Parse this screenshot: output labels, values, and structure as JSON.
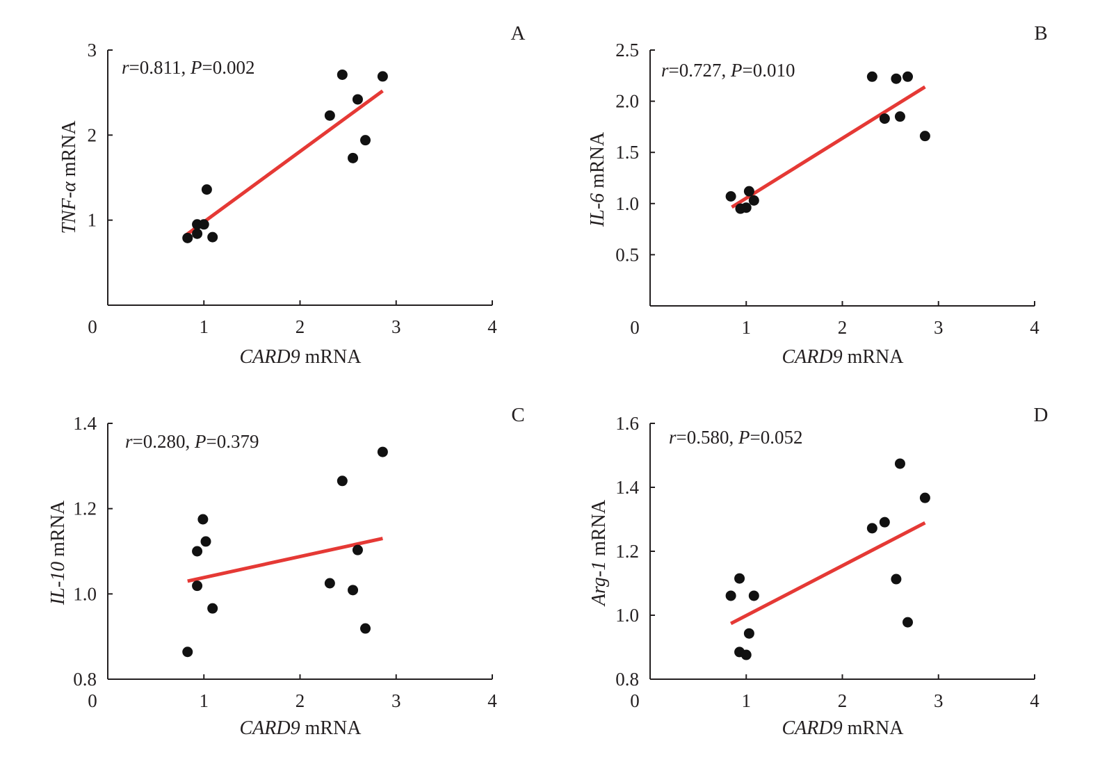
{
  "figure": {
    "line_color": "#E53935",
    "point_color": "#111111"
  },
  "chart_data": [
    {
      "type": "scatter",
      "panel": "A",
      "title": "",
      "xlabel_italic": "CARD9",
      "xlabel_rest": " mRNA",
      "ylabel_italic": "TNF-α",
      "ylabel_rest": " mRNA",
      "stat": {
        "r_label": "r",
        "r_value": "=0.811, ",
        "p_label": "P",
        "p_value": "=0.002"
      },
      "xlim": [
        0,
        4
      ],
      "ylim": [
        0,
        3
      ],
      "xticks": [
        "0",
        "1",
        "2",
        "3",
        "4"
      ],
      "yticks": [
        "1",
        "2",
        "3"
      ],
      "ytick_values": [
        1,
        2,
        3
      ],
      "grid": false,
      "points": [
        {
          "x": 0.83,
          "y": 0.79
        },
        {
          "x": 0.93,
          "y": 0.84
        },
        {
          "x": 0.93,
          "y": 0.95
        },
        {
          "x": 1.0,
          "y": 0.95
        },
        {
          "x": 1.03,
          "y": 1.36
        },
        {
          "x": 1.09,
          "y": 0.8
        },
        {
          "x": 2.31,
          "y": 2.23
        },
        {
          "x": 2.44,
          "y": 2.71
        },
        {
          "x": 2.55,
          "y": 1.73
        },
        {
          "x": 2.6,
          "y": 2.42
        },
        {
          "x": 2.68,
          "y": 1.94
        },
        {
          "x": 2.86,
          "y": 2.69
        }
      ],
      "fit": {
        "x": [
          0.82,
          2.86
        ],
        "y": [
          0.83,
          2.52
        ]
      }
    },
    {
      "type": "scatter",
      "panel": "B",
      "title": "",
      "xlabel_italic": "CARD9",
      "xlabel_rest": " mRNA",
      "ylabel_italic": "IL-6",
      "ylabel_rest": " mRNA",
      "stat": {
        "r_label": "r",
        "r_value": "=0.727, ",
        "p_label": "P",
        "p_value": "=0.010"
      },
      "xlim": [
        0,
        4
      ],
      "ylim": [
        0,
        2.5
      ],
      "xticks": [
        "0",
        "1",
        "2",
        "3",
        "4"
      ],
      "yticks": [
        "0.5",
        "1.0",
        "1.5",
        "2.0",
        "2.5"
      ],
      "ytick_values": [
        0.5,
        1.0,
        1.5,
        2.0,
        2.5
      ],
      "grid": false,
      "points": [
        {
          "x": 0.84,
          "y": 1.07
        },
        {
          "x": 0.94,
          "y": 0.95
        },
        {
          "x": 1.0,
          "y": 0.96
        },
        {
          "x": 1.03,
          "y": 1.12
        },
        {
          "x": 1.08,
          "y": 1.03
        },
        {
          "x": 2.31,
          "y": 2.24
        },
        {
          "x": 2.44,
          "y": 1.83
        },
        {
          "x": 2.56,
          "y": 2.22
        },
        {
          "x": 2.6,
          "y": 1.85
        },
        {
          "x": 2.68,
          "y": 2.24
        },
        {
          "x": 2.86,
          "y": 1.66
        }
      ],
      "fit": {
        "x": [
          0.85,
          2.86
        ],
        "y": [
          0.965,
          2.14
        ]
      }
    },
    {
      "type": "scatter",
      "panel": "C",
      "title": "",
      "xlabel_italic": "CARD9",
      "xlabel_rest": " mRNA",
      "ylabel_italic": "IL-10",
      "ylabel_rest": " mRNA",
      "stat": {
        "r_label": "r",
        "r_value": "=0.280, ",
        "p_label": "P",
        "p_value": "=0.379"
      },
      "xlim": [
        0,
        4
      ],
      "ylim": [
        0.8,
        1.4
      ],
      "xticks": [
        "0",
        "1",
        "2",
        "3",
        "4"
      ],
      "yticks": [
        "0.8",
        "1.0",
        "1.2",
        "1.4"
      ],
      "ytick_values": [
        0.8,
        1.0,
        1.2,
        1.4
      ],
      "grid": false,
      "points": [
        {
          "x": 0.83,
          "y": 0.864
        },
        {
          "x": 0.93,
          "y": 1.019
        },
        {
          "x": 0.93,
          "y": 1.1
        },
        {
          "x": 0.99,
          "y": 1.175
        },
        {
          "x": 1.02,
          "y": 1.123
        },
        {
          "x": 1.09,
          "y": 0.966
        },
        {
          "x": 2.31,
          "y": 1.025
        },
        {
          "x": 2.44,
          "y": 1.265
        },
        {
          "x": 2.55,
          "y": 1.009
        },
        {
          "x": 2.6,
          "y": 1.103
        },
        {
          "x": 2.68,
          "y": 0.919
        },
        {
          "x": 2.86,
          "y": 1.333
        }
      ],
      "fit": {
        "x": [
          0.83,
          2.86
        ],
        "y": [
          1.03,
          1.13
        ]
      }
    },
    {
      "type": "scatter",
      "panel": "D",
      "title": "",
      "xlabel_italic": "CARD9",
      "xlabel_rest": " mRNA",
      "ylabel_italic": "Arg-1",
      "ylabel_rest": " mRNA",
      "stat": {
        "r_label": "r",
        "r_value": "=0.580, ",
        "p_label": "P",
        "p_value": "=0.052"
      },
      "xlim": [
        0,
        4
      ],
      "ylim": [
        0.8,
        1.6
      ],
      "xticks": [
        "0",
        "1",
        "2",
        "3",
        "4"
      ],
      "yticks": [
        "0.8",
        "1.0",
        "1.2",
        "1.4",
        "1.6"
      ],
      "ytick_values": [
        0.8,
        1.0,
        1.2,
        1.4,
        1.6
      ],
      "grid": false,
      "points": [
        {
          "x": 0.84,
          "y": 1.061
        },
        {
          "x": 0.93,
          "y": 1.115
        },
        {
          "x": 0.93,
          "y": 0.885
        },
        {
          "x": 1.0,
          "y": 0.876
        },
        {
          "x": 1.03,
          "y": 0.943
        },
        {
          "x": 1.08,
          "y": 1.061
        },
        {
          "x": 2.31,
          "y": 1.272
        },
        {
          "x": 2.44,
          "y": 1.291
        },
        {
          "x": 2.56,
          "y": 1.113
        },
        {
          "x": 2.6,
          "y": 1.474
        },
        {
          "x": 2.68,
          "y": 0.978
        },
        {
          "x": 2.86,
          "y": 1.367
        }
      ],
      "fit": {
        "x": [
          0.84,
          2.86
        ],
        "y": [
          0.974,
          1.289
        ]
      }
    }
  ]
}
